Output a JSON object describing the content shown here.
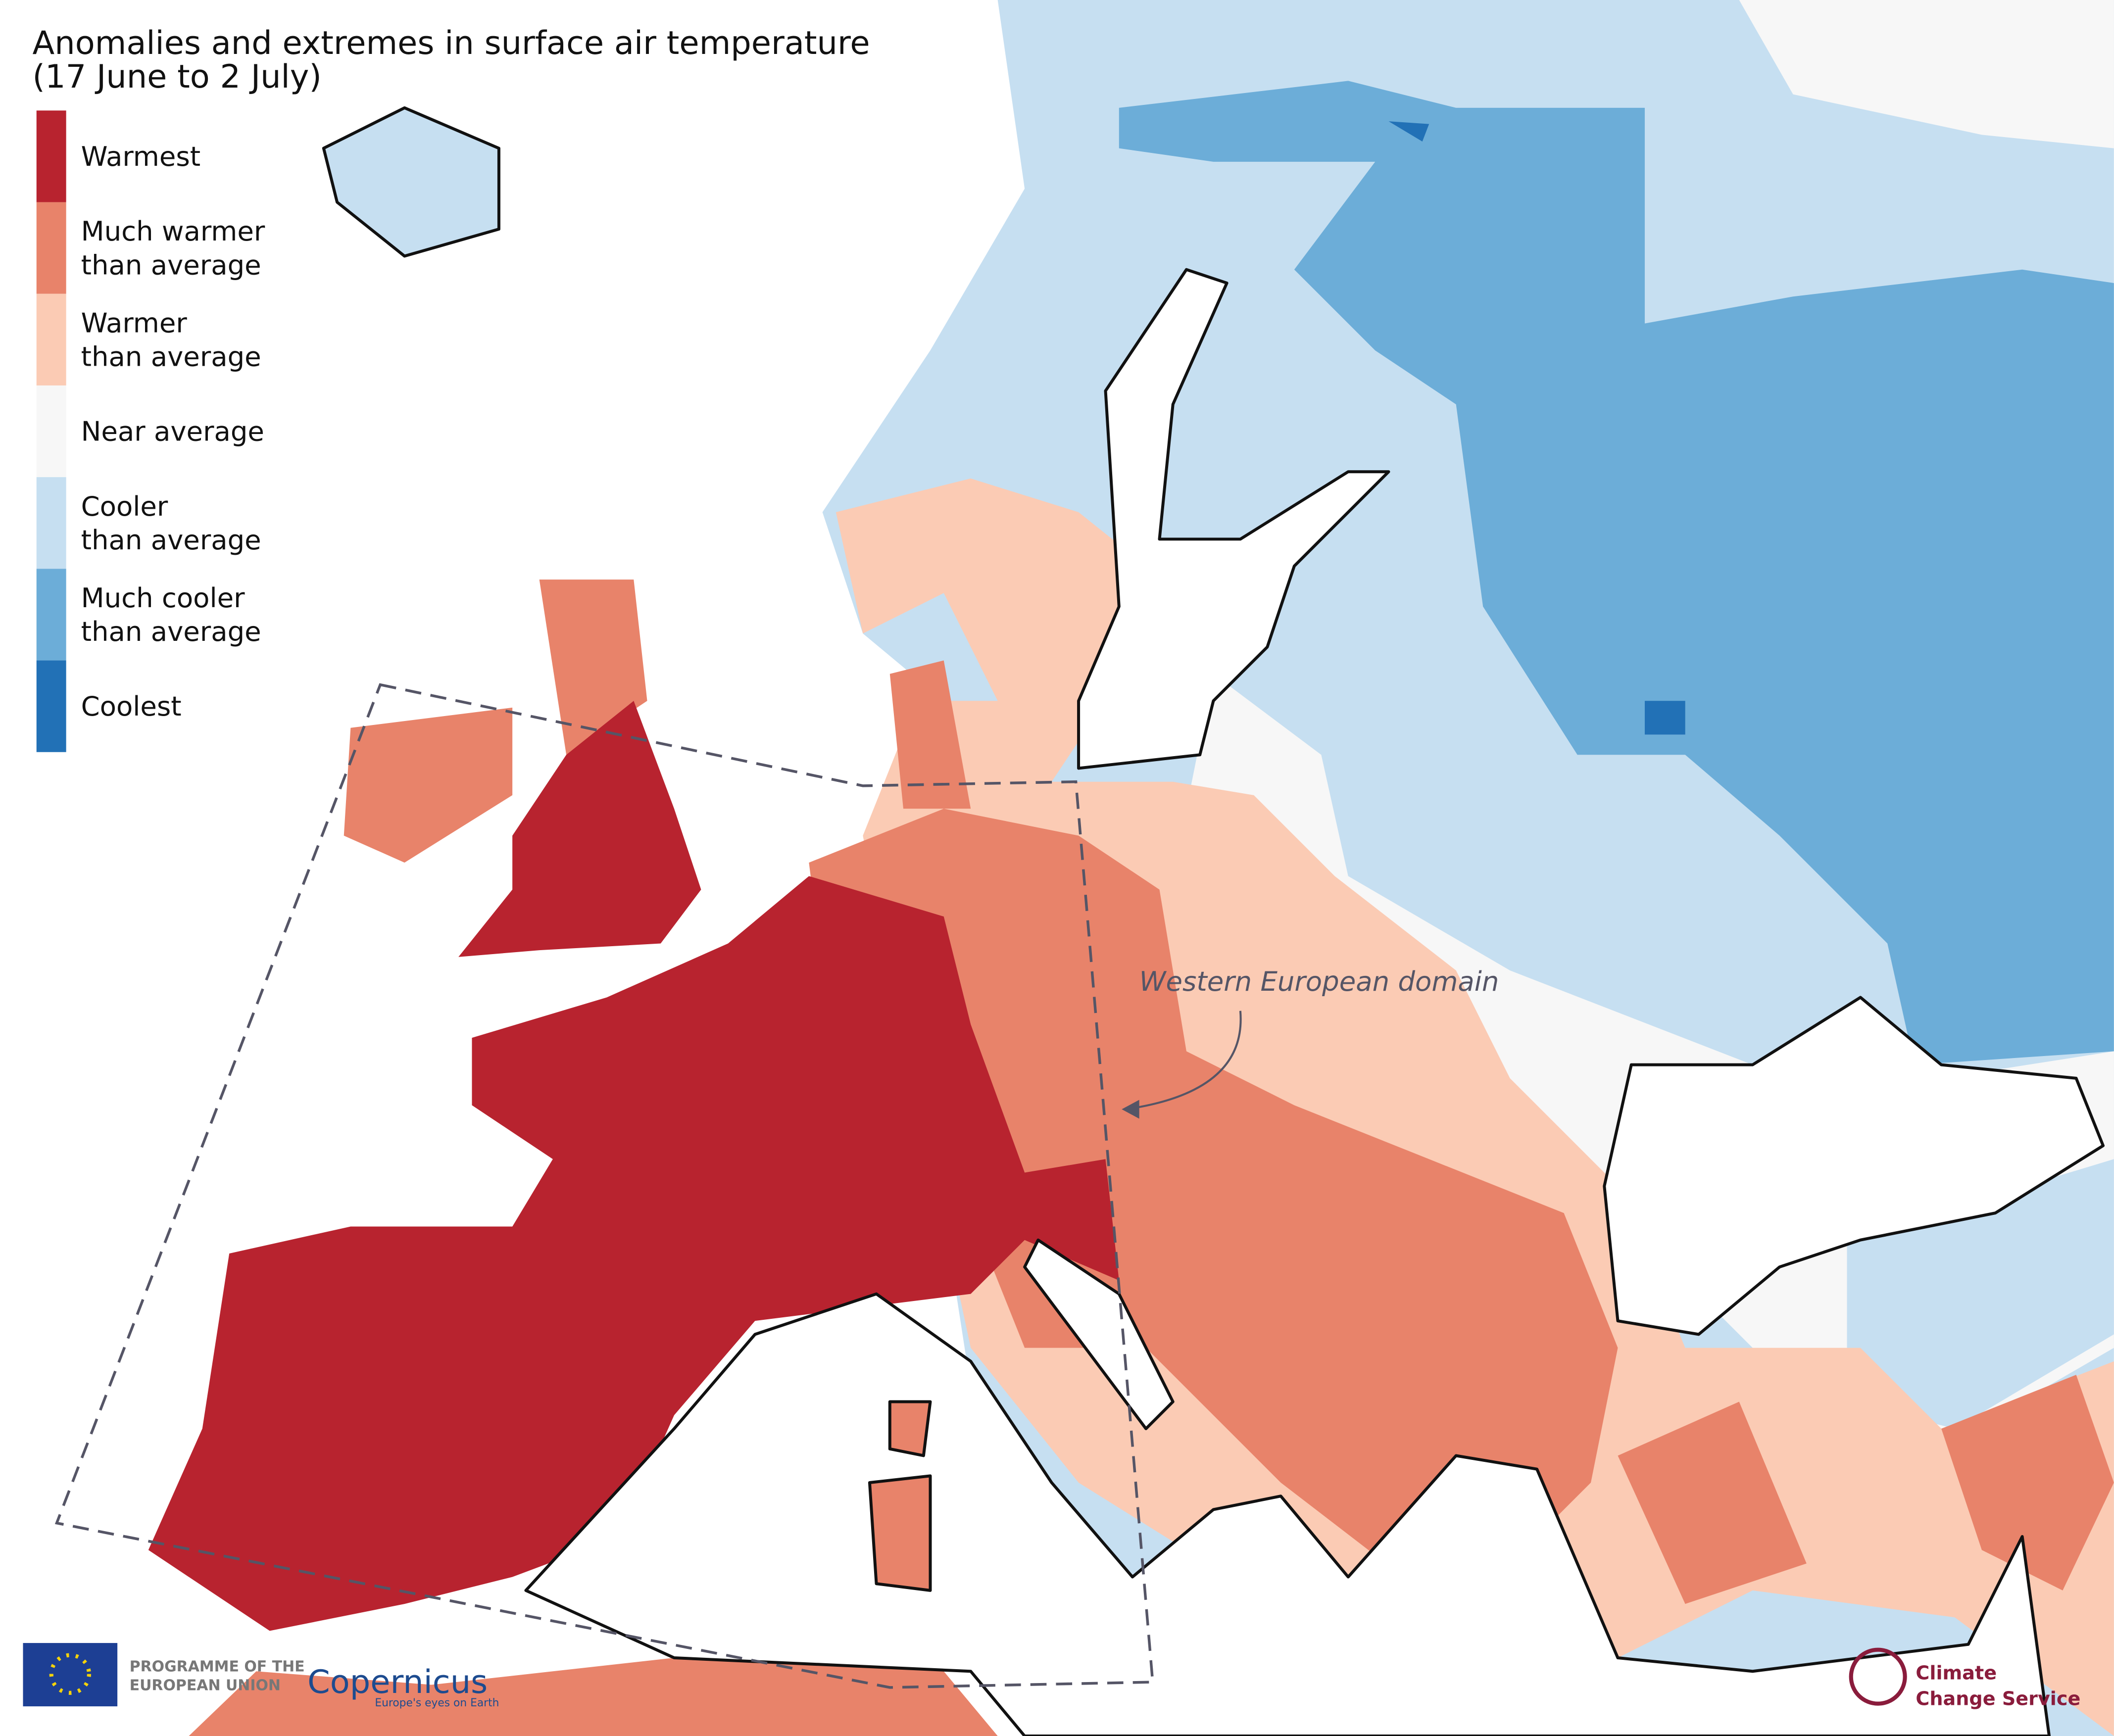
{
  "header": {
    "title_lines": [
      "Anomalies and extremes in surface air temperature",
      "(17 June to 2 July)"
    ]
  },
  "legend": [
    {
      "lines": [
        "Warmest"
      ],
      "color": "#b8232f"
    },
    {
      "lines": [
        "Much warmer",
        "than average"
      ],
      "color": "#e8836a"
    },
    {
      "lines": [
        "Warmer",
        "than average"
      ],
      "color": "#fbcbb4"
    },
    {
      "lines": [
        "Near average"
      ],
      "color": "#f7f7f7"
    },
    {
      "lines": [
        "Cooler",
        "than average"
      ],
      "color": "#c6dff1"
    },
    {
      "lines": [
        "Much cooler",
        "than average"
      ],
      "color": "#6cadd8"
    },
    {
      "lines": [
        "Coolest"
      ],
      "color": "#2271b6"
    }
  ],
  "annotation": "Western European domain",
  "logos": {
    "eu": [
      "PROGRAMME OF THE",
      "EUROPEAN UNION"
    ],
    "copernicus": [
      "Copernicus",
      "Europe's eyes on Earth"
    ],
    "c3s": [
      "Climate",
      "Change Service"
    ]
  }
}
